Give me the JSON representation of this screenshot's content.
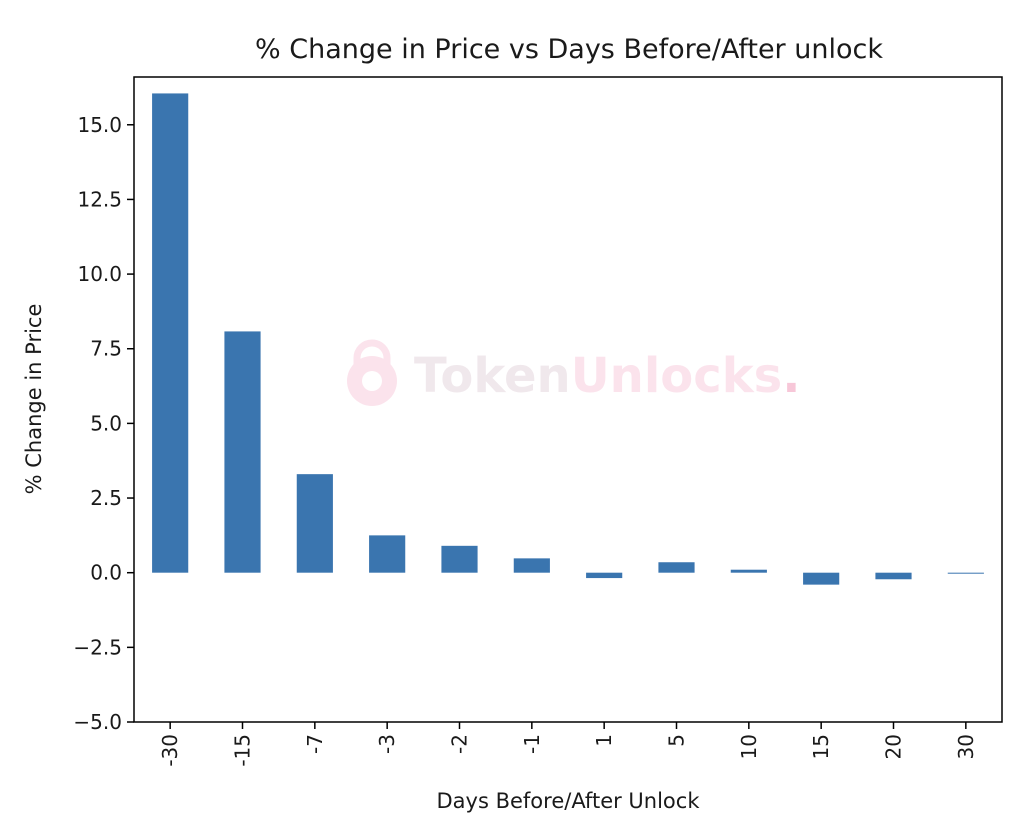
{
  "chart_data": {
    "type": "bar",
    "title": "% Change in Price vs Days Before/After unlock",
    "xlabel": "Days Before/After Unlock",
    "ylabel": "% Change in Price",
    "categories": [
      "-30",
      "-15",
      "-7",
      "-3",
      "-2",
      "-1",
      "1",
      "5",
      "10",
      "15",
      "20",
      "30"
    ],
    "values": [
      16.05,
      8.08,
      3.3,
      1.25,
      0.9,
      0.48,
      -0.18,
      0.35,
      0.1,
      -0.4,
      -0.22,
      -0.03
    ],
    "ylim": [
      -5.0,
      16.6
    ],
    "yticks": [
      -5.0,
      -2.5,
      0.0,
      2.5,
      5.0,
      7.5,
      10.0,
      12.5,
      15.0
    ],
    "ytick_labels": [
      "−5.0",
      "−2.5",
      "0.0",
      "2.5",
      "5.0",
      "7.5",
      "10.0",
      "12.5",
      "15.0"
    ],
    "bar_color": "#3a75af",
    "grid": false,
    "legend": false,
    "xtick_rotation": "vertical"
  },
  "watermark": {
    "text_dark": "Token",
    "text_light": "Unlocks",
    "dot": ".",
    "color_dark": "#f0e8ec",
    "color_light": "#fbe3ec",
    "icon": "lock-icon"
  }
}
